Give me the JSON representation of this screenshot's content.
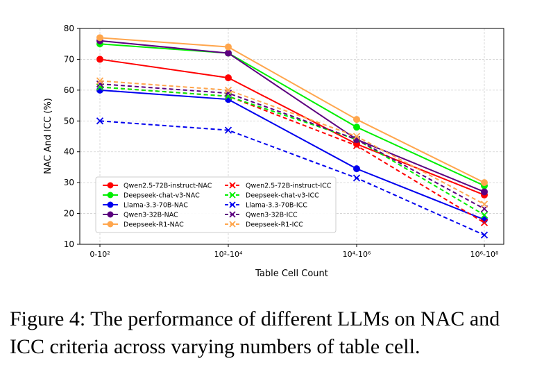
{
  "chart_data": {
    "type": "line",
    "categories": [
      "0-10²",
      "10²-10⁴",
      "10⁴-10⁶",
      "10⁶-10⁸"
    ],
    "xlabel": "Table Cell Count",
    "ylabel": "NAC And ICC (%)",
    "ylim": [
      10,
      80
    ],
    "yticks": [
      10,
      20,
      30,
      40,
      50,
      60,
      70,
      80
    ],
    "grid": true,
    "legend_position": "lower-left",
    "series": [
      {
        "name": "Qwen2.5-72B-instruct-NAC",
        "color": "#ff0000",
        "style": "solid",
        "marker": "circle",
        "values": [
          70,
          64,
          42.5,
          26
        ]
      },
      {
        "name": "Deepseek-chat-v3-NAC",
        "color": "#00ee00",
        "style": "solid",
        "marker": "circle",
        "values": [
          75,
          72,
          48,
          29
        ]
      },
      {
        "name": "Llama-3.3-70B-NAC",
        "color": "#0000ee",
        "style": "solid",
        "marker": "circle",
        "values": [
          60,
          57,
          34.5,
          18
        ]
      },
      {
        "name": "Qwen3-32B-NAC",
        "color": "#5c0080",
        "style": "solid",
        "marker": "circle",
        "values": [
          76,
          72,
          44,
          27
        ]
      },
      {
        "name": "Deepseek-R1-NAC",
        "color": "#ffa64d",
        "style": "solid",
        "marker": "circle",
        "values": [
          77,
          74,
          50.5,
          30
        ]
      },
      {
        "name": "Qwen2.5-72B-instruct-ICC",
        "color": "#ff0000",
        "style": "dashed",
        "marker": "x",
        "values": [
          61,
          58,
          42,
          17
        ]
      },
      {
        "name": "Deepseek-chat-v3-ICC",
        "color": "#00ee00",
        "style": "dashed",
        "marker": "x",
        "values": [
          61,
          58,
          44,
          19.5
        ]
      },
      {
        "name": "Llama-3.3-70B-ICC",
        "color": "#0000ee",
        "style": "dashed",
        "marker": "x",
        "values": [
          50,
          47,
          31.5,
          13
        ]
      },
      {
        "name": "Qwen3-32B-ICC",
        "color": "#5c0080",
        "style": "dashed",
        "marker": "x",
        "values": [
          62,
          59,
          44,
          21.5
        ]
      },
      {
        "name": "Deepseek-R1-ICC",
        "color": "#ffa64d",
        "style": "dashed",
        "marker": "x",
        "values": [
          63,
          60,
          45,
          23
        ]
      }
    ]
  },
  "caption": "Figure 4: The performance of different LLMs on NAC and ICC criteria across varying numbers of table cell."
}
